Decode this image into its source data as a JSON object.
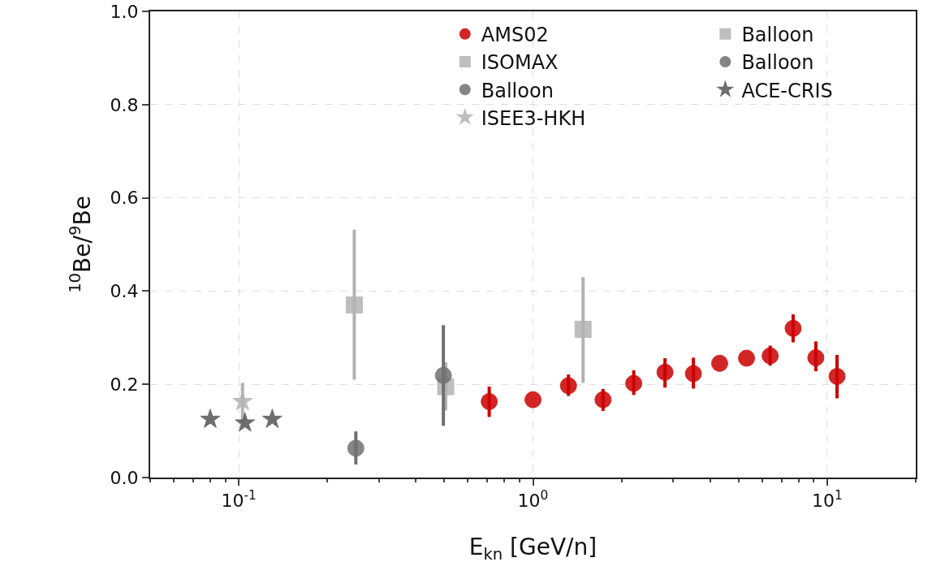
{
  "chart_data": {
    "type": "scatter",
    "xlabel": "E$_{kn}$ [GeV/n]",
    "ylabel": "$^{10}$Be/$^{9}$Be",
    "log": "x",
    "grid": true,
    "legend": "top right",
    "xlim": [
      0.05,
      20
    ],
    "xticks": [
      {
        "value": 0.1,
        "label": "10$^{-1}$"
      },
      {
        "value": 1,
        "label": "10$^{0}$"
      },
      {
        "value": 10,
        "label": "10$^{1}$"
      }
    ],
    "ylim": [
      0,
      1.0
    ],
    "yticks": [
      {
        "value": 0,
        "label": "0.0"
      },
      0.2,
      0.4,
      0.6,
      0.8,
      {
        "value": 1.0,
        "label": "1.0"
      }
    ],
    "series": [
      {
        "name": "AMS02",
        "color": "#cc0000",
        "marker": "circle",
        "x": [
          0.71,
          1.0,
          1.32,
          1.73,
          2.2,
          2.81,
          3.51,
          4.31,
          5.32,
          6.4,
          7.66,
          9.15,
          10.8
        ],
        "values": [
          0.163,
          0.167,
          0.197,
          0.167,
          0.202,
          0.226,
          0.223,
          0.245,
          0.256,
          0.261,
          0.32,
          0.257,
          0.217
        ],
        "errors": [
          [
            0.13,
            0.195
          ],
          null,
          [
            0.175,
            0.221
          ],
          [
            0.143,
            0.19
          ],
          [
            0.177,
            0.23
          ],
          [
            0.193,
            0.256
          ],
          [
            0.191,
            0.257
          ],
          null,
          null,
          [
            0.24,
            0.283
          ],
          [
            0.29,
            0.35
          ],
          [
            0.228,
            0.292
          ],
          [
            0.17,
            0.263
          ]
        ]
      },
      {
        "name": "ISOMAX",
        "color": "#b3b3b3",
        "marker": "square",
        "x": [
          0.247,
          1.48
        ],
        "values": [
          0.37,
          0.318
        ],
        "errors": [
          [
            0.21,
            0.532
          ],
          [
            0.203,
            0.43
          ]
        ]
      },
      {
        "name": "Balloon",
        "color": "#707070",
        "marker": "circle",
        "x": [
          0.25
        ],
        "values": [
          0.063
        ],
        "errors": [
          [
            0.028,
            0.099
          ]
        ]
      },
      {
        "name": "ISEE3-HKH",
        "color": "#b3b3b3",
        "marker": "star",
        "x": [
          0.103
        ],
        "values": [
          0.163
        ],
        "errors": [
          [
            0.12,
            0.203
          ]
        ]
      },
      {
        "name": "Balloon",
        "color": "#b3b3b3",
        "marker": "square",
        "x": [
          0.505
        ],
        "values": [
          0.195
        ],
        "errors": [
          [
            0.144,
            0.247
          ]
        ]
      },
      {
        "name": "Balloon",
        "color": "#707070",
        "marker": "circle",
        "x": [
          0.496
        ],
        "values": [
          0.219
        ],
        "errors": [
          [
            0.111,
            0.327
          ]
        ]
      },
      {
        "name": "ACE-CRIS",
        "color": "#555555",
        "marker": "star",
        "x": [
          0.08,
          0.105,
          0.13
        ],
        "values": [
          0.125,
          0.117,
          0.125
        ]
      }
    ]
  }
}
